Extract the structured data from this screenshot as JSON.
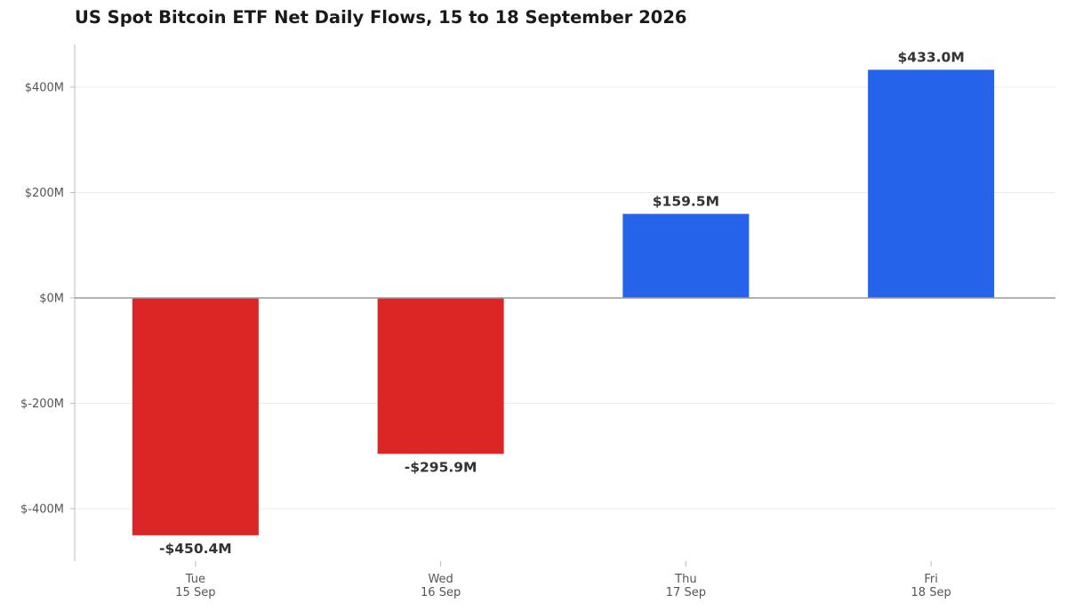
{
  "chart_data": {
    "type": "bar",
    "title": "US Spot Bitcoin ETF Net Daily Flows, 15 to 18 September 2026",
    "xlabel": "",
    "ylabel": "",
    "categories": [
      {
        "day": "Tue",
        "date": "15 Sep"
      },
      {
        "day": "Wed",
        "date": "16 Sep"
      },
      {
        "day": "Thu",
        "date": "17 Sep"
      },
      {
        "day": "Fri",
        "date": "18 Sep"
      }
    ],
    "values": [
      -450.4,
      -295.9,
      159.5,
      433.0
    ],
    "value_labels": [
      "-$450.4M",
      "-$295.9M",
      "$159.5M",
      "$433.0M"
    ],
    "unit": "millions USD",
    "ylim": [
      -500,
      480
    ],
    "yticks": [
      400,
      200,
      0,
      -200,
      -400
    ],
    "ytick_labels": [
      "$400M",
      "$200M",
      "$0M",
      "$-200M",
      "$-400M"
    ],
    "grid": "horizontal",
    "colors": {
      "positive": "#2563eb",
      "negative": "#dc2626",
      "grid": "#ebebeb",
      "zero_line": "#999999",
      "axis": "#bbbbbb"
    }
  }
}
